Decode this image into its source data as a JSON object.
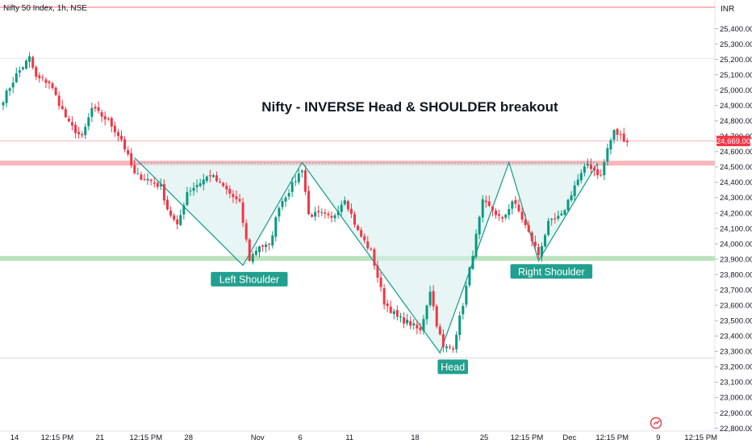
{
  "header": {
    "symbol": "Nifty 50 Index, 1h, NSE",
    "currency": "INR"
  },
  "chart_data": {
    "type": "candlestick",
    "title": "Nifty - INVERSE Head & SHOULDER breakout",
    "ylim": [
      22750,
      25550
    ],
    "y_ticks": [
      25400,
      25300,
      25200,
      25100,
      25000,
      24900,
      24800,
      24700,
      24600,
      24500,
      24400,
      24300,
      24200,
      24100,
      24000,
      23900,
      23800,
      23700,
      23600,
      23500,
      23400,
      23300,
      23200,
      23100,
      23000,
      22900,
      22800
    ],
    "y_tick_labels": [
      "25,400.00",
      "25,300.00",
      "25,200.00",
      "25,100.00",
      "25,000.00",
      "24,900.00",
      "24,800.00",
      "24,700.00",
      "24,600.00",
      "24,500.00",
      "24,400.00",
      "24,300.00",
      "24,200.00",
      "24,100.00",
      "24,000.00",
      "23,900.00",
      "23,800.00",
      "23,700.00",
      "23,600.00",
      "23,500.00",
      "23,400.00",
      "23,300.00",
      "23,200.00",
      "23,100.00",
      "23,000.00",
      "22,900.00",
      "22,800.00"
    ],
    "x_ticks": [
      {
        "label": "14",
        "bar": 0
      },
      {
        "label": "12:15 PM",
        "bar": 13
      },
      {
        "label": "21",
        "bar": 26
      },
      {
        "label": "12:15 PM",
        "bar": 40
      },
      {
        "label": "28",
        "bar": 53
      },
      {
        "label": "Nov",
        "bar": 74
      },
      {
        "label": "6",
        "bar": 87
      },
      {
        "label": "11",
        "bar": 102
      },
      {
        "label": "18",
        "bar": 122
      },
      {
        "label": "25",
        "bar": 143
      },
      {
        "label": "12:15 PM",
        "bar": 156
      },
      {
        "label": "Dec",
        "bar": 169
      },
      {
        "label": "12:15 PM",
        "bar": 182
      },
      {
        "label": "9",
        "bar": 196
      },
      {
        "label": "12:15 PM",
        "bar": 209
      }
    ],
    "last_price": 24669.0,
    "last_price_label": "24,669.00",
    "levels": [
      {
        "name": "neckline",
        "value": 24525,
        "color": "#f7b3b8"
      },
      {
        "name": "support",
        "value": 23905,
        "color": "#b7e0b9"
      }
    ],
    "pattern_points": [
      {
        "bar": 40,
        "price": 24560
      },
      {
        "bar": 73,
        "price": 23860
      },
      {
        "bar": 91,
        "price": 24530
      },
      {
        "bar": 133,
        "price": 23290
      },
      {
        "bar": 154,
        "price": 24530
      },
      {
        "bar": 163,
        "price": 23890
      },
      {
        "bar": 181,
        "price": 24525
      }
    ],
    "annotations": [
      {
        "text": "Left Shoulder",
        "bar": 70,
        "price": 23770
      },
      {
        "text": "Head",
        "bar": 132,
        "price": 23200
      },
      {
        "text": "Right Shoulder",
        "bar": 162,
        "price": 23820
      }
    ],
    "anchors": [
      [
        0,
        24940
      ],
      [
        4,
        25100
      ],
      [
        8,
        25210
      ],
      [
        10,
        25080
      ],
      [
        14,
        25050
      ],
      [
        18,
        24870
      ],
      [
        20,
        24780
      ],
      [
        24,
        24690
      ],
      [
        27,
        24880
      ],
      [
        32,
        24800
      ],
      [
        36,
        24680
      ],
      [
        40,
        24450
      ],
      [
        44,
        24420
      ],
      [
        48,
        24370
      ],
      [
        50,
        24230
      ],
      [
        53,
        24110
      ],
      [
        56,
        24340
      ],
      [
        60,
        24400
      ],
      [
        63,
        24450
      ],
      [
        67,
        24370
      ],
      [
        72,
        24260
      ],
      [
        75,
        23900
      ],
      [
        78,
        23990
      ],
      [
        81,
        23980
      ],
      [
        84,
        24250
      ],
      [
        88,
        24380
      ],
      [
        91,
        24490
      ],
      [
        93,
        24190
      ],
      [
        97,
        24190
      ],
      [
        100,
        24160
      ],
      [
        104,
        24300
      ],
      [
        108,
        24080
      ],
      [
        112,
        23950
      ],
      [
        116,
        23620
      ],
      [
        120,
        23520
      ],
      [
        124,
        23480
      ],
      [
        127,
        23430
      ],
      [
        130,
        23700
      ],
      [
        132,
        23480
      ],
      [
        134,
        23320
      ],
      [
        137,
        23330
      ],
      [
        140,
        23610
      ],
      [
        143,
        23940
      ],
      [
        146,
        24270
      ],
      [
        149,
        24220
      ],
      [
        152,
        24150
      ],
      [
        155,
        24280
      ],
      [
        157,
        24210
      ],
      [
        160,
        24070
      ],
      [
        163,
        23930
      ],
      [
        166,
        24130
      ],
      [
        170,
        24180
      ],
      [
        174,
        24380
      ],
      [
        178,
        24520
      ],
      [
        182,
        24440
      ],
      [
        184,
        24620
      ],
      [
        186,
        24730
      ],
      [
        188,
        24700
      ],
      [
        190,
        24669
      ]
    ]
  }
}
